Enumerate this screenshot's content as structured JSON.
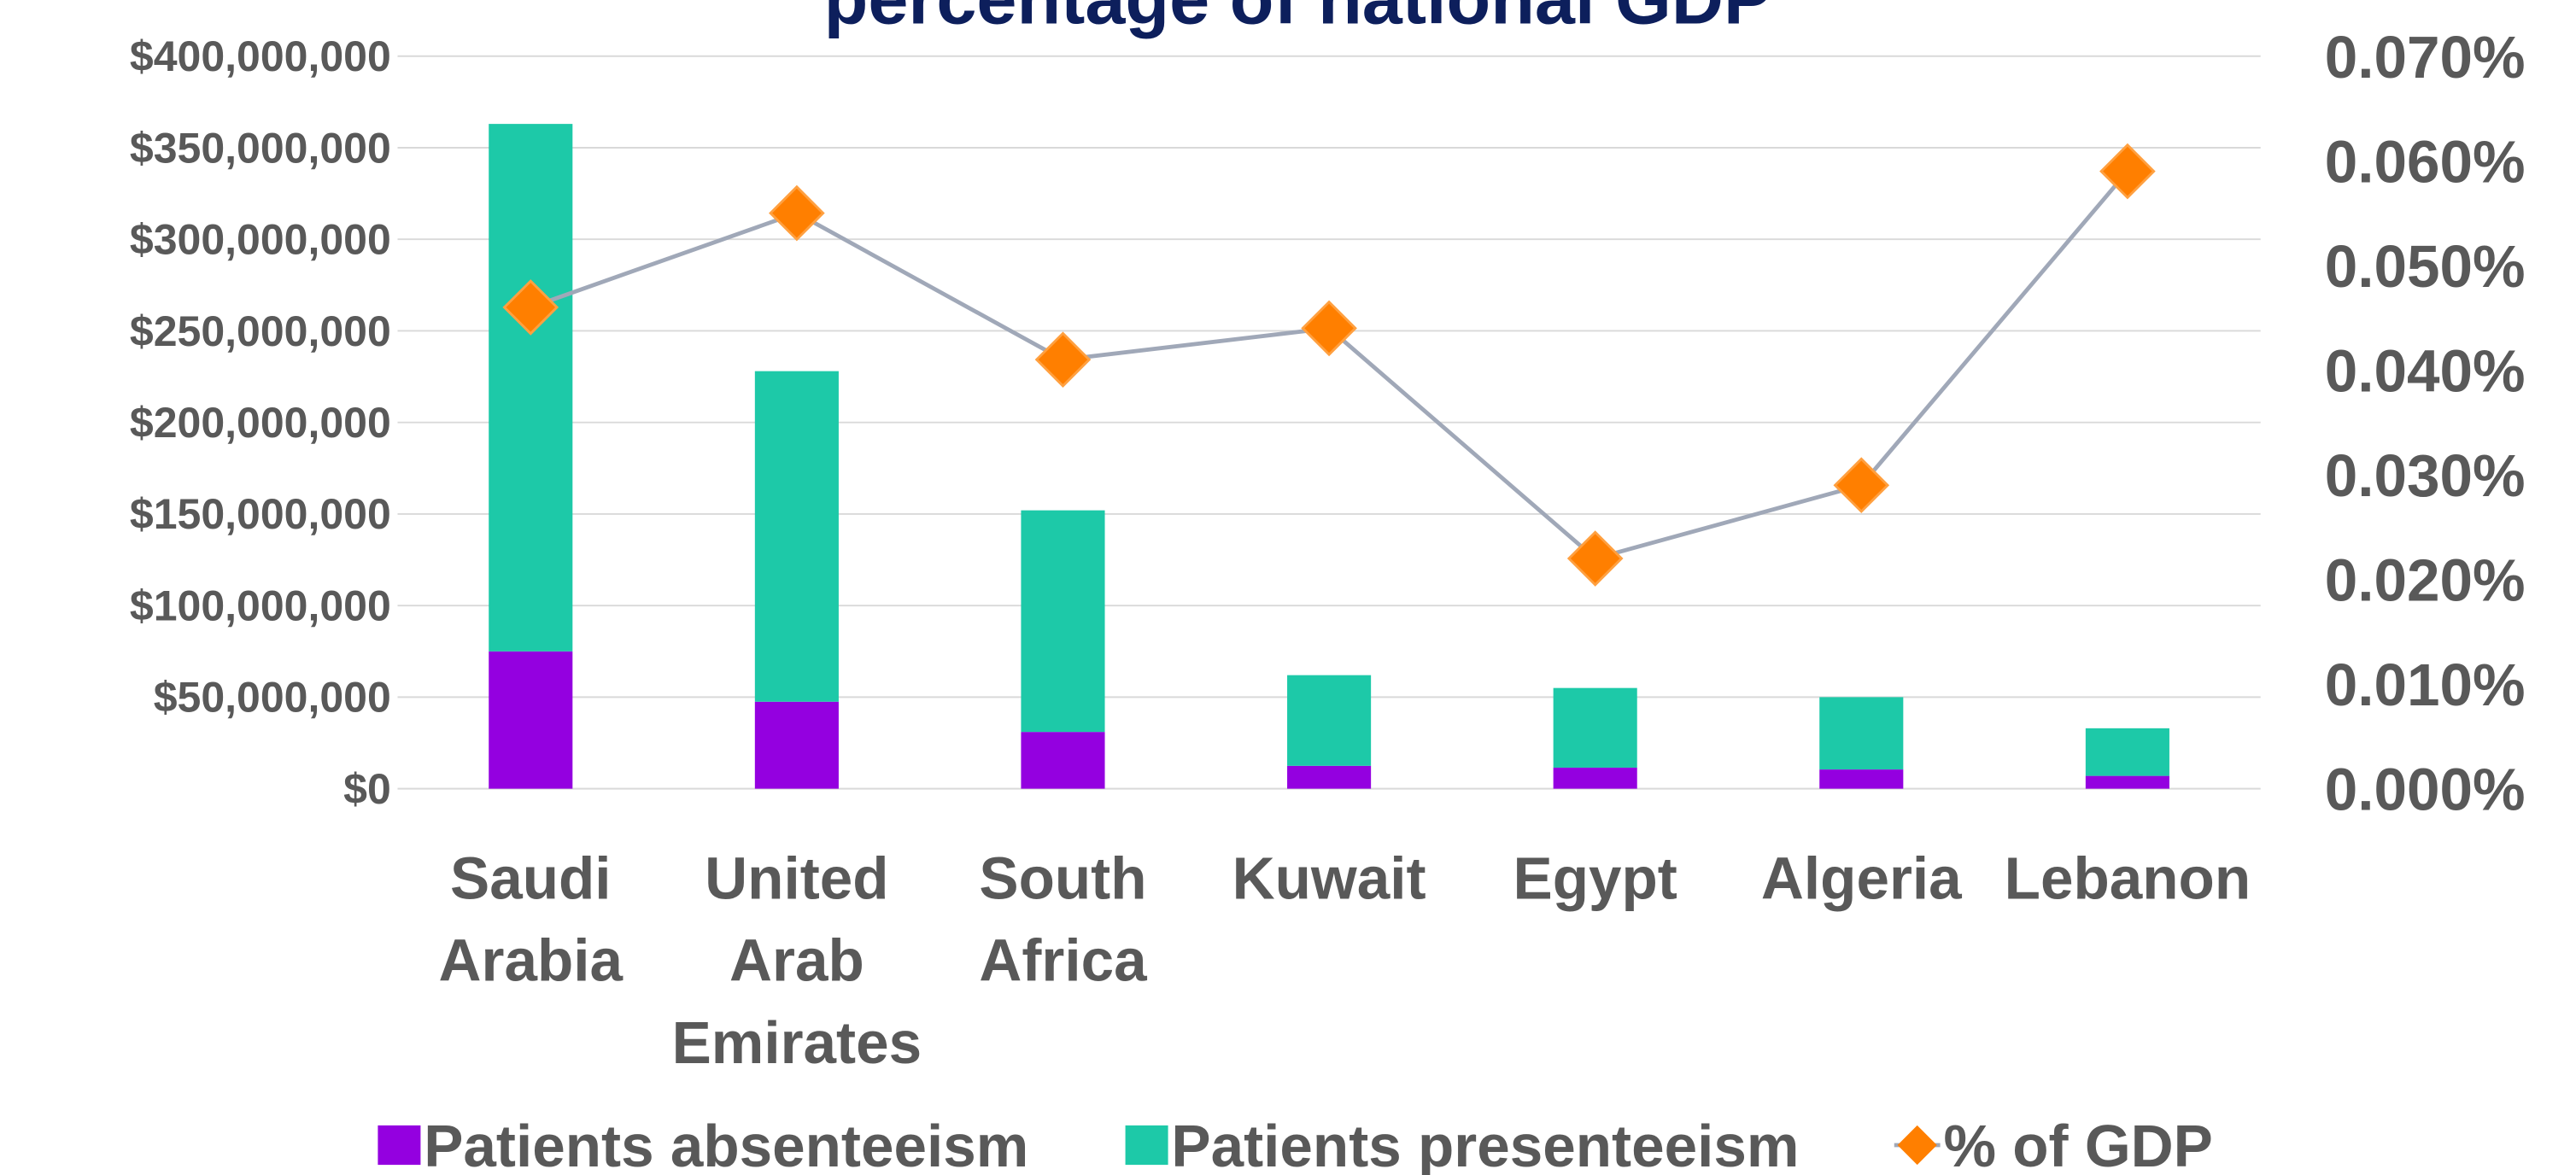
{
  "chart_data": {
    "type": "bar",
    "title": "percentage of national GDP",
    "categories": [
      "Saudi Arabia",
      "United Arab Emirates",
      "South Africa",
      "Kuwait",
      "Egypt",
      "Algeria",
      "Lebanon"
    ],
    "series": [
      {
        "name": "Patients absenteeism",
        "color": "#9400e0",
        "type": "bar",
        "values": [
          75000000,
          47500000,
          31000000,
          12500000,
          11500000,
          10500000,
          7000000
        ]
      },
      {
        "name": "Patients presenteeism",
        "color": "#1dc9a8",
        "type": "bar",
        "values": [
          288000000,
          180500000,
          121000000,
          49500000,
          43500000,
          39500000,
          26000000
        ]
      },
      {
        "name": "% of GDP",
        "color": "#ff7f00",
        "line_color": "#a0a8b8",
        "type": "line",
        "axis": "y2",
        "values": [
          0.046,
          0.055,
          0.041,
          0.044,
          0.022,
          0.029,
          0.059
        ]
      }
    ],
    "stacked": true,
    "ylim": [
      0,
      400000000
    ],
    "yticks": [
      {
        "value": 0,
        "label": "$0"
      },
      {
        "value": 50000000,
        "label": "$50,000,000"
      },
      {
        "value": 100000000,
        "label": "$100,000,000"
      },
      {
        "value": 150000000,
        "label": "$150,000,000"
      },
      {
        "value": 200000000,
        "label": "$200,000,000"
      },
      {
        "value": 250000000,
        "label": "$250,000,000"
      },
      {
        "value": 300000000,
        "label": "$300,000,000"
      },
      {
        "value": 350000000,
        "label": "$350,000,000"
      },
      {
        "value": 400000000,
        "label": "$400,000,000"
      }
    ],
    "y2lim": [
      0,
      0.07
    ],
    "y2ticks": [
      {
        "value": 0,
        "label": "0.000%"
      },
      {
        "value": 0.01,
        "label": "0.010%"
      },
      {
        "value": 0.02,
        "label": "0.020%"
      },
      {
        "value": 0.03,
        "label": "0.030%"
      },
      {
        "value": 0.04,
        "label": "0.040%"
      },
      {
        "value": 0.05,
        "label": "0.050%"
      },
      {
        "value": 0.06,
        "label": "0.060%"
      },
      {
        "value": 0.07,
        "label": "0.070%"
      }
    ],
    "grid": true,
    "legend": "bottom"
  }
}
